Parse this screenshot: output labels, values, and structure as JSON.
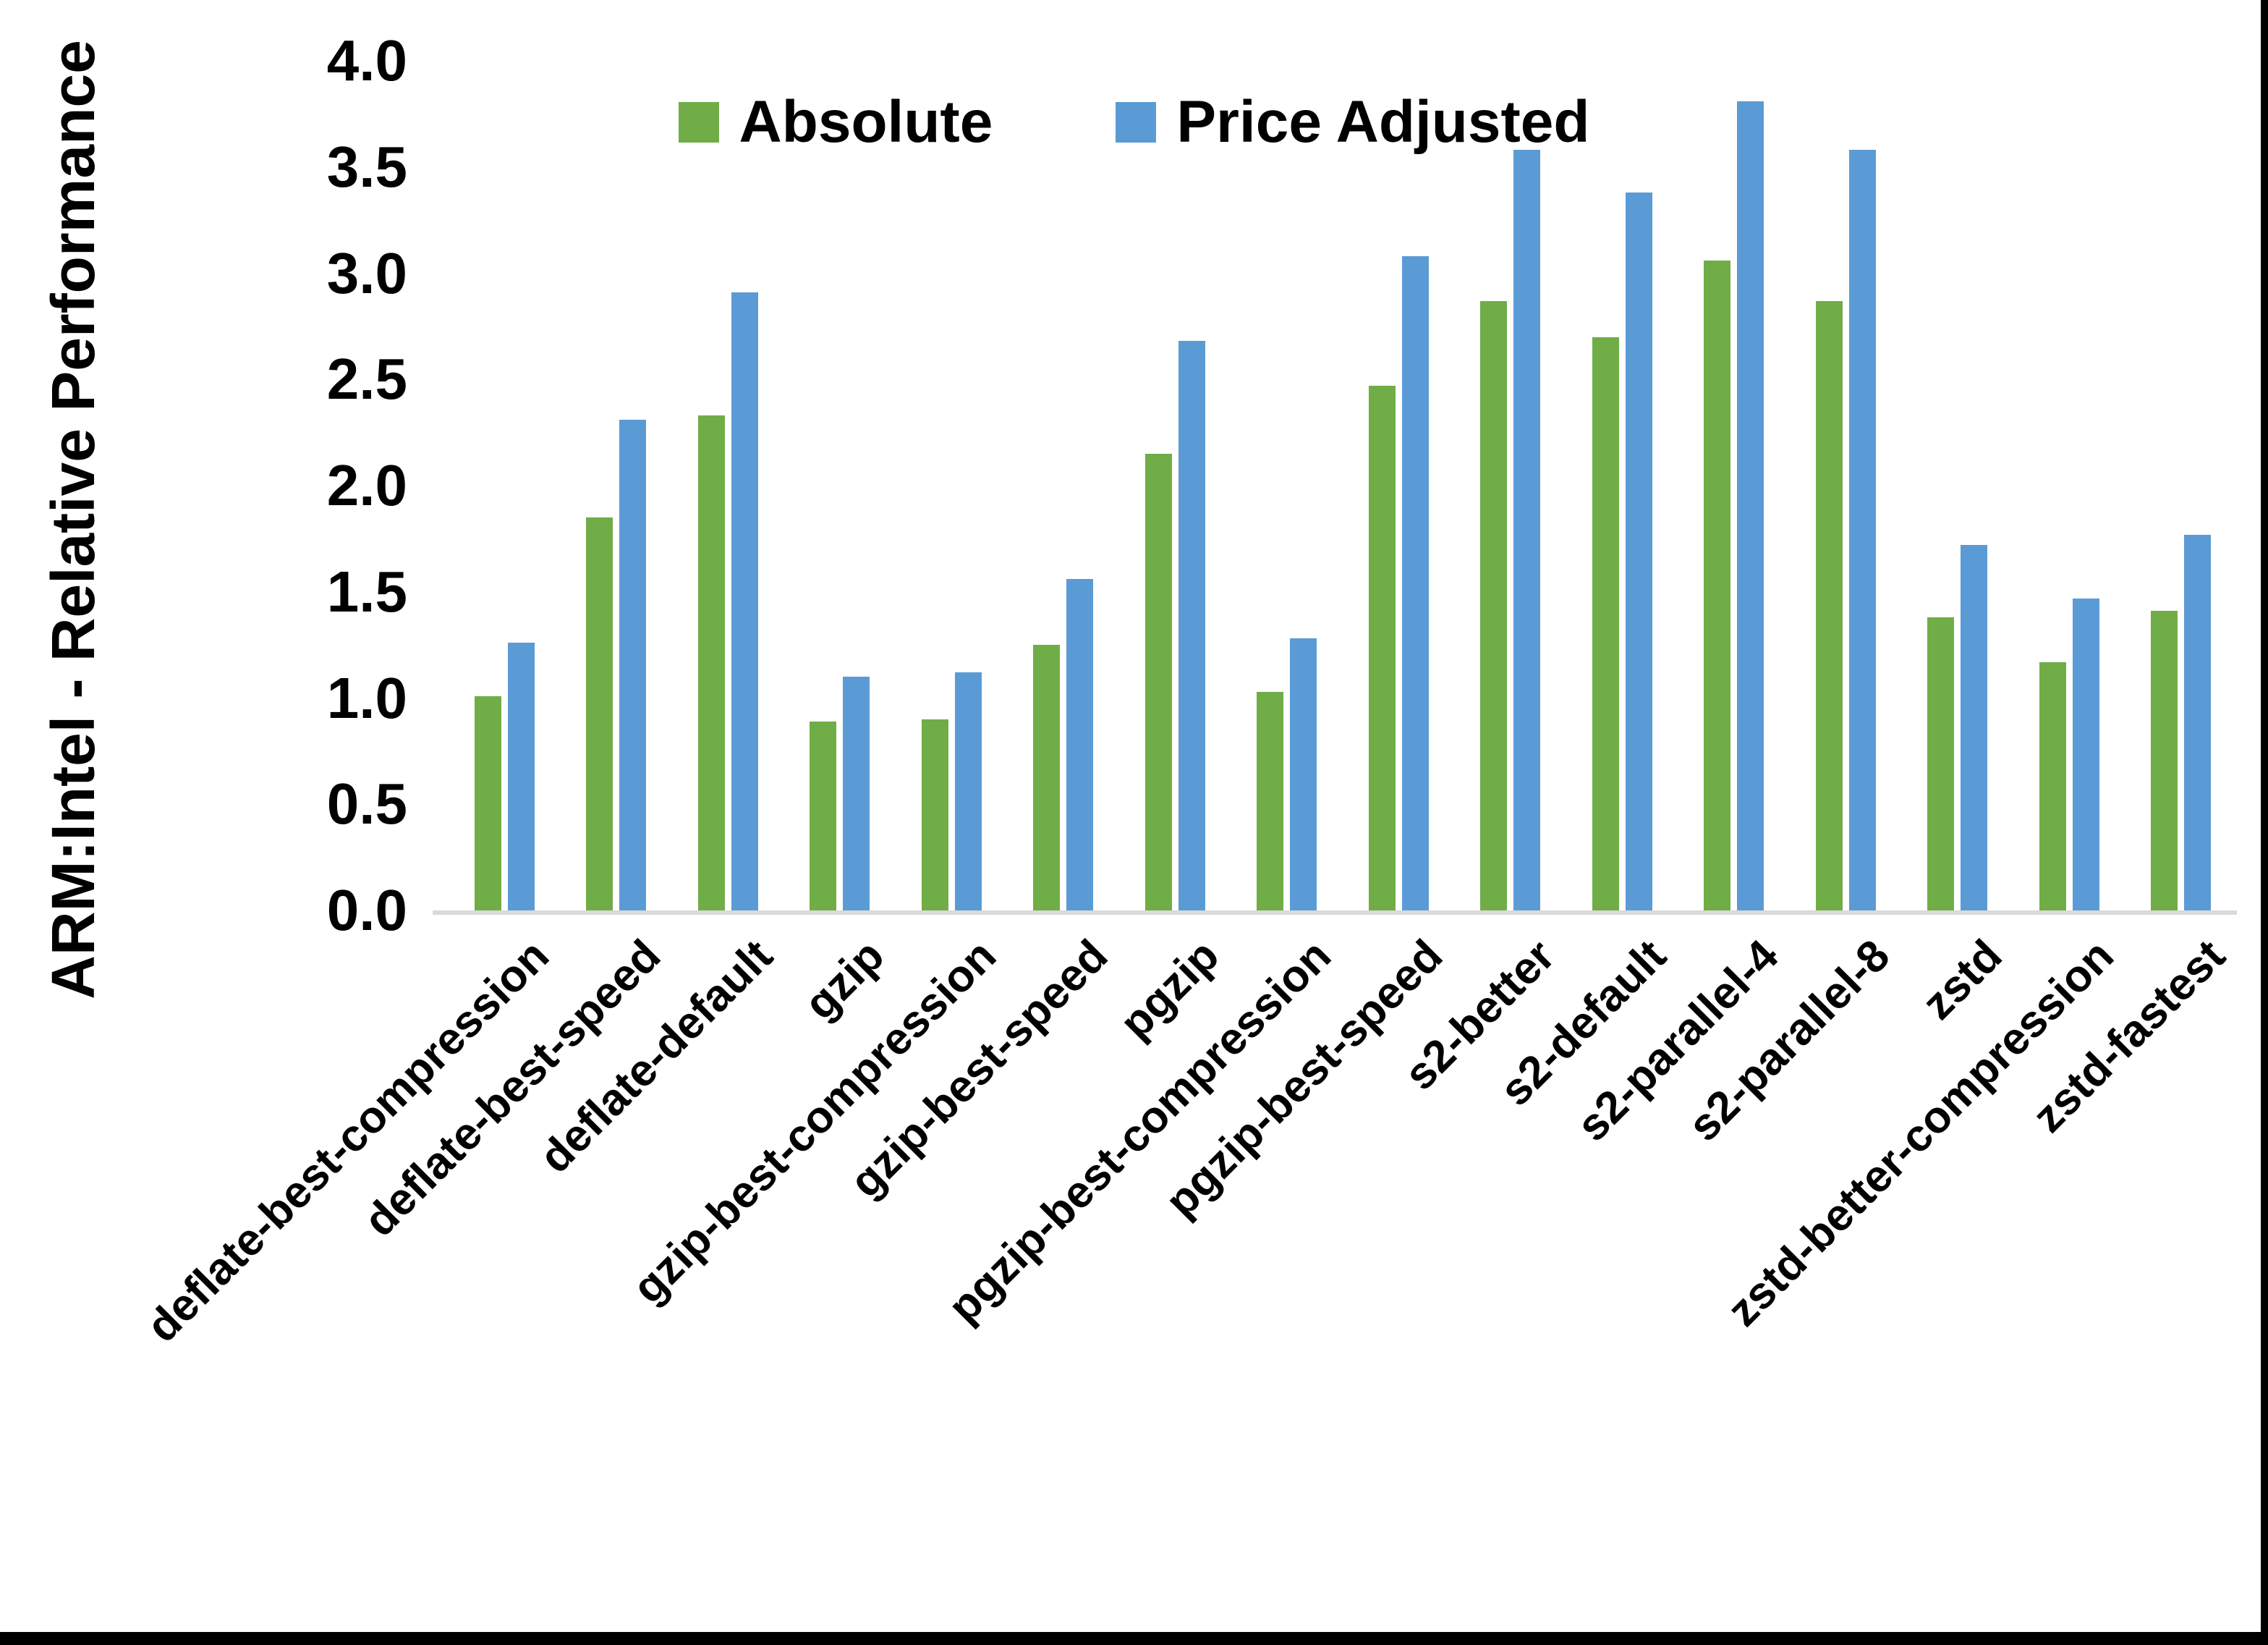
{
  "page": {
    "background_color": "#ffffff",
    "edge_border_color": "#000000"
  },
  "chart_data": {
    "type": "bar",
    "title": "",
    "xlabel": "",
    "ylabel": "ARM:Intel - Relative Performance",
    "ylim": [
      0.0,
      4.0
    ],
    "ytick_step": 0.5,
    "ytick_decimals": 1,
    "grid": false,
    "legend_position": "top-center",
    "axis_line_color": "#D9D9D9",
    "text_color": "#000000",
    "categories": [
      "deflate-best-compression",
      "deflate-best-speed",
      "deflate-default",
      "gzip",
      "gzip-best-compression",
      "gzip-best-speed",
      "pgzip",
      "pgzip-best-compression",
      "pgzip-best-speed",
      "s2-better",
      "s2-default",
      "s2-parallel-4",
      "s2-parallel-8",
      "zstd",
      "zstd-better-compression",
      "zstd-fastest"
    ],
    "series": [
      {
        "name": "Absolute",
        "color": "#70AD47",
        "values": [
          1.01,
          1.85,
          2.33,
          0.89,
          0.9,
          1.25,
          2.15,
          1.03,
          2.47,
          2.87,
          2.7,
          3.06,
          2.87,
          1.38,
          1.17,
          1.41
        ]
      },
      {
        "name": "Price Adjusted",
        "color": "#5B9BD5",
        "values": [
          1.26,
          2.31,
          2.91,
          1.1,
          1.12,
          1.56,
          2.68,
          1.28,
          3.08,
          3.58,
          3.38,
          3.81,
          3.58,
          1.72,
          1.47,
          1.77
        ]
      }
    ]
  }
}
